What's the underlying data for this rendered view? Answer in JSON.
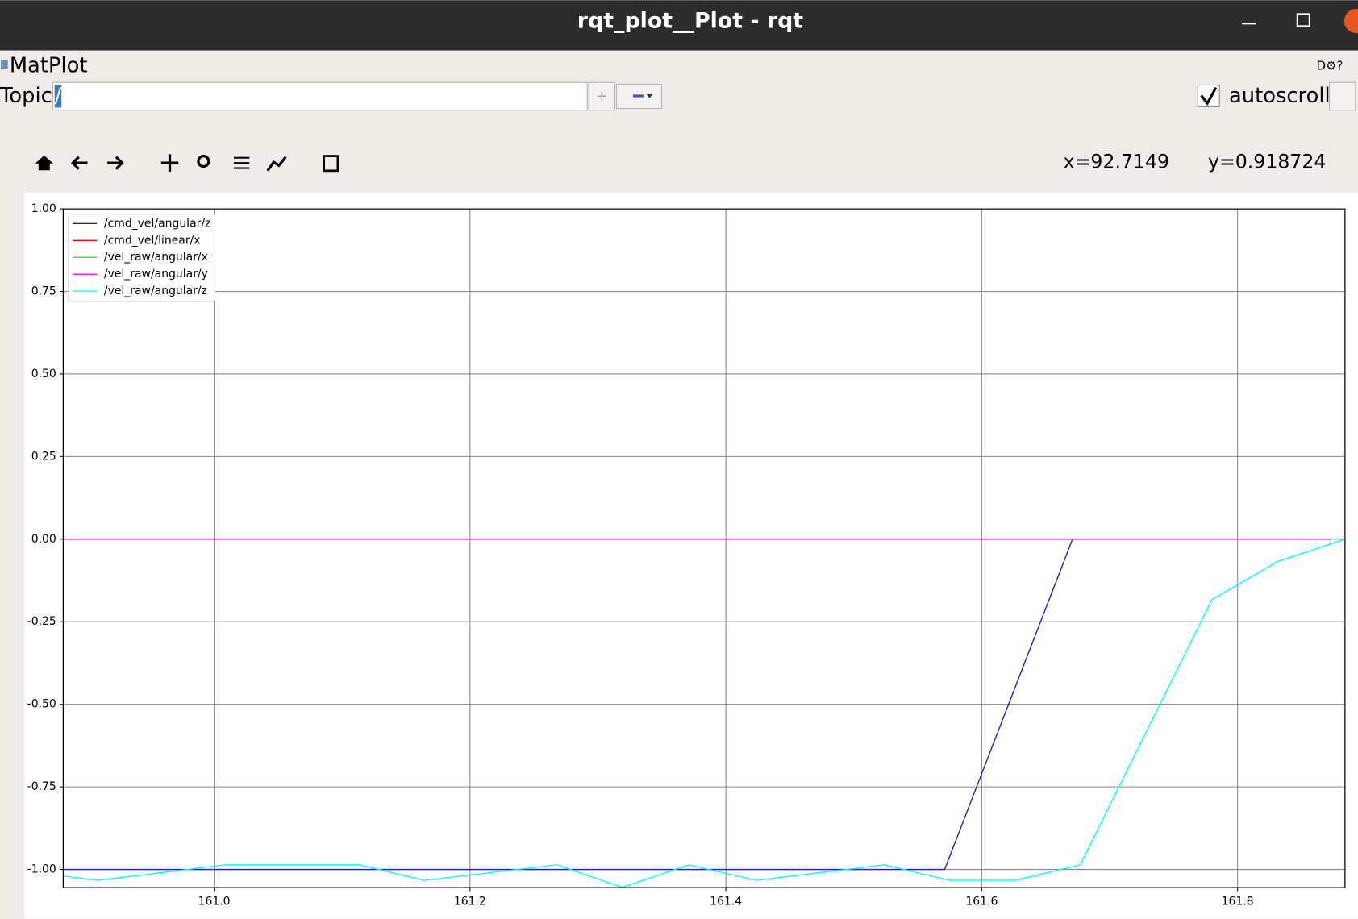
{
  "window": {
    "title": "rqt_plot__Plot - rqt"
  },
  "plugin": {
    "title": "MatPlot"
  },
  "topic": {
    "label": "Topic",
    "value": "/"
  },
  "autoscroll": {
    "label": "autoscroll",
    "checked": true
  },
  "cursor": {
    "x": "x=92.7149",
    "y": "y=0.918724"
  },
  "chart_data": {
    "type": "line",
    "xlim": [
      160.882,
      161.884
    ],
    "ylim": [
      -1.055,
      1.0
    ],
    "xticks": [
      {
        "value": 161.0,
        "label": "161.0"
      },
      161.2,
      161.4,
      161.6,
      161.8
    ],
    "yticks": [
      {
        "value": -1,
        "label": "-1.00"
      },
      {
        "value": -0.75,
        "label": "-0.75"
      },
      {
        "value": -0.5,
        "label": "-0.50"
      },
      {
        "value": -0.25,
        "label": "-0.25"
      },
      {
        "value": 0,
        "label": "0.00"
      },
      {
        "value": 0.25,
        "label": "0.25"
      },
      {
        "value": 0.5,
        "label": "0.50"
      },
      {
        "value": 0.75,
        "label": "0.75"
      },
      {
        "value": 1,
        "label": "1.00"
      }
    ],
    "grid": true,
    "legend": "upper-left",
    "series": [
      {
        "name": "/cmd_vel/angular/z",
        "color": "#2222bb",
        "x": [
          160.882,
          161.571,
          161.671,
          161.873
        ],
        "values": [
          -1,
          -1,
          0,
          0
        ]
      },
      {
        "name": "/cmd_vel/linear/x",
        "color": "#ff0000",
        "x": [
          160.882,
          161.873
        ],
        "values": [
          0,
          0
        ]
      },
      {
        "name": "/vel_raw/angular/x",
        "color": "#00ff00",
        "x": [
          160.882,
          161.873
        ],
        "values": [
          0,
          0
        ]
      },
      {
        "name": "/vel_raw/angular/y",
        "color": "#ff00ff",
        "x": [
          160.882,
          161.873
        ],
        "values": [
          0,
          0
        ]
      },
      {
        "name": "/vel_raw/angular/z",
        "color": "#00ffff",
        "x": [
          160.882,
          160.909,
          161.009,
          161.114,
          161.164,
          161.268,
          161.319,
          161.371,
          161.424,
          161.524,
          161.575,
          161.626,
          161.677,
          161.78,
          161.831,
          161.884
        ],
        "values": [
          -1.02,
          -1.033,
          -0.986,
          -0.986,
          -1.033,
          -0.986,
          -1.054,
          -0.986,
          -1.033,
          -0.986,
          -1.033,
          -1.033,
          -0.986,
          -0.183,
          -0.068,
          0
        ]
      }
    ]
  }
}
